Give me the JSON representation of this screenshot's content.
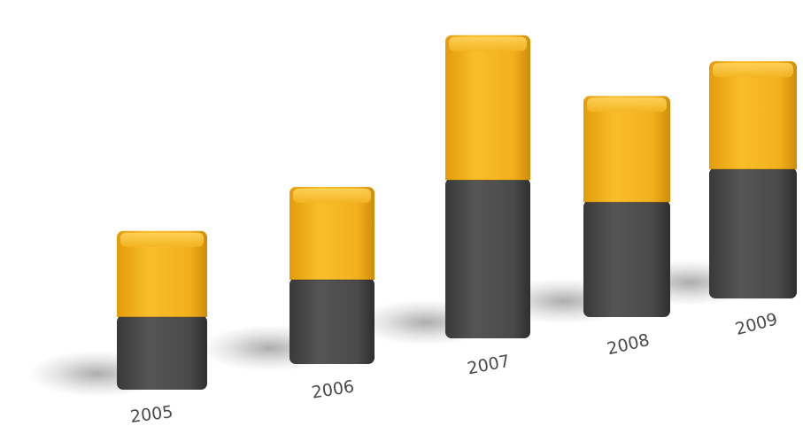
{
  "chart_data": {
    "type": "bar",
    "stacked": true,
    "categories": [
      "2005",
      "2006",
      "2007",
      "2008",
      "2009"
    ],
    "series": [
      {
        "values": [
          32,
          38,
          72,
          54,
          62
        ]
      },
      {
        "values": [
          38,
          42,
          66,
          50,
          52
        ]
      }
    ],
    "axes_visible": false,
    "grid": false,
    "legend": "none",
    "colors": {
      "bottom": "#4b4b4b",
      "top": "#f6b41c"
    }
  }
}
